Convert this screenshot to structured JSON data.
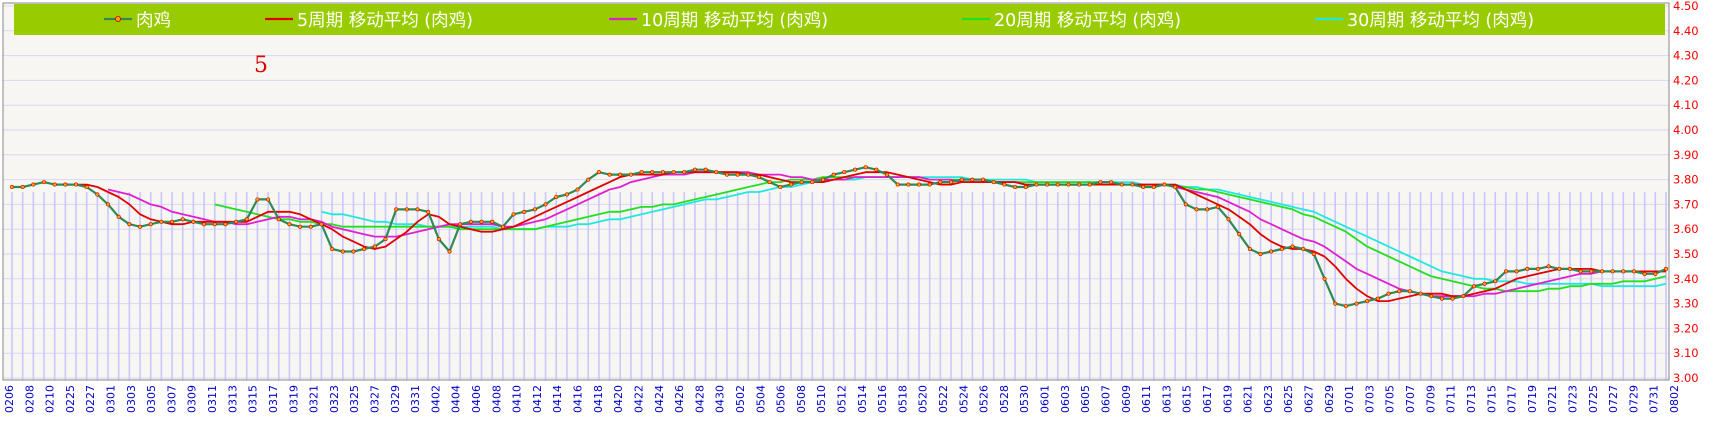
{
  "note_label": "5",
  "legend": [
    {
      "label": "肉鸡",
      "color": "#2e8b57",
      "marker": true
    },
    {
      "label": "5周期  移动平均 (肉鸡)",
      "color": "#e00000"
    },
    {
      "label": "10周期  移动平均 (肉鸡)",
      "color": "#e020d0"
    },
    {
      "label": "20周期  移动平均 (肉鸡)",
      "color": "#20e020"
    },
    {
      "label": "30周期  移动平均 (肉鸡)",
      "color": "#20e8e0"
    }
  ],
  "colors": {
    "legend_bar": "#99cc00",
    "legend_text": "#ffffff",
    "axis_label": "#ff0000",
    "x_label": "#0000cc",
    "bars": "#c8c8ff",
    "grid": "#d8d8f0",
    "price_line": "#2e8b57",
    "marker_fill": "#ffa500",
    "marker_stroke": "#cc0000"
  },
  "chart_data": {
    "type": "line",
    "ylim": [
      3.0,
      4.5
    ],
    "yticks": [
      "3.00",
      "3.10",
      "3.20",
      "3.30",
      "3.40",
      "3.50",
      "3.60",
      "3.70",
      "3.80",
      "3.90",
      "4.00",
      "4.10",
      "4.20",
      "4.30",
      "4.40",
      "4.50"
    ],
    "x_tick_labels": [
      "0206",
      "0208",
      "0210",
      "0225",
      "0227",
      "0301",
      "0303",
      "0305",
      "0307",
      "0309",
      "0311",
      "0313",
      "0315",
      "0317",
      "0319",
      "0321",
      "0323",
      "0325",
      "0327",
      "0329",
      "0331",
      "0402",
      "0404",
      "0406",
      "0408",
      "0410",
      "0412",
      "0414",
      "0416",
      "0418",
      "0420",
      "0422",
      "0424",
      "0426",
      "0428",
      "0430",
      "0502",
      "0504",
      "0506",
      "0508",
      "0510",
      "0512",
      "0514",
      "0516",
      "0518",
      "0520",
      "0522",
      "0524",
      "0526",
      "0528",
      "0530",
      "0601",
      "0603",
      "0605",
      "0607",
      "0609",
      "0611",
      "0613",
      "0615",
      "0617",
      "0619",
      "0621",
      "0623",
      "0625",
      "0627",
      "0629",
      "0701",
      "0703",
      "0705",
      "0707",
      "0709",
      "0711",
      "0713",
      "0715",
      "0717",
      "0719",
      "0721",
      "0723",
      "0725",
      "0727",
      "0729",
      "0731",
      "0802"
    ],
    "series": [
      {
        "name": "肉鸡",
        "values": [
          3.77,
          3.77,
          3.78,
          3.79,
          3.78,
          3.78,
          3.78,
          3.77,
          3.74,
          3.7,
          3.65,
          3.62,
          3.61,
          3.62,
          3.63,
          3.63,
          3.64,
          3.63,
          3.62,
          3.62,
          3.62,
          3.63,
          3.64,
          3.72,
          3.72,
          3.64,
          3.62,
          3.61,
          3.61,
          3.62,
          3.52,
          3.51,
          3.51,
          3.52,
          3.53,
          3.56,
          3.68,
          3.68,
          3.68,
          3.67,
          3.56,
          3.51,
          3.62,
          3.63,
          3.63,
          3.63,
          3.61,
          3.66,
          3.67,
          3.68,
          3.7,
          3.73,
          3.74,
          3.76,
          3.8,
          3.83,
          3.82,
          3.82,
          3.82,
          3.83,
          3.83,
          3.83,
          3.83,
          3.83,
          3.84,
          3.84,
          3.83,
          3.82,
          3.82,
          3.82,
          3.81,
          3.79,
          3.77,
          3.78,
          3.79,
          3.79,
          3.8,
          3.82,
          3.83,
          3.84,
          3.85,
          3.84,
          3.82,
          3.78,
          3.78,
          3.78,
          3.78,
          3.79,
          3.79,
          3.8,
          3.8,
          3.8,
          3.79,
          3.78,
          3.77,
          3.77,
          3.78,
          3.78,
          3.78,
          3.78,
          3.78,
          3.78,
          3.79,
          3.79,
          3.78,
          3.78,
          3.77,
          3.77,
          3.78,
          3.77,
          3.7,
          3.68,
          3.68,
          3.69,
          3.64,
          3.58,
          3.52,
          3.5,
          3.51,
          3.52,
          3.53,
          3.52,
          3.5,
          3.4,
          3.3,
          3.29,
          3.3,
          3.31,
          3.32,
          3.34,
          3.35,
          3.35,
          3.34,
          3.33,
          3.32,
          3.32,
          3.33,
          3.37,
          3.38,
          3.39,
          3.43,
          3.43,
          3.44,
          3.44,
          3.45,
          3.44,
          3.44,
          3.43,
          3.43,
          3.43,
          3.43,
          3.43,
          3.43,
          3.42,
          3.42,
          3.44
        ]
      },
      {
        "name": "5周期  移动平均 (肉鸡)",
        "values": [
          null,
          null,
          null,
          null,
          3.78,
          3.78,
          3.78,
          3.78,
          3.77,
          3.75,
          3.73,
          3.7,
          3.66,
          3.64,
          3.63,
          3.62,
          3.62,
          3.63,
          3.63,
          3.63,
          3.63,
          3.63,
          3.63,
          3.65,
          3.67,
          3.67,
          3.67,
          3.66,
          3.64,
          3.62,
          3.6,
          3.57,
          3.55,
          3.53,
          3.52,
          3.53,
          3.56,
          3.59,
          3.63,
          3.66,
          3.65,
          3.62,
          3.61,
          3.6,
          3.59,
          3.59,
          3.6,
          3.61,
          3.63,
          3.65,
          3.67,
          3.69,
          3.71,
          3.73,
          3.75,
          3.77,
          3.79,
          3.81,
          3.82,
          3.82,
          3.82,
          3.82,
          3.83,
          3.83,
          3.83,
          3.83,
          3.83,
          3.83,
          3.83,
          3.82,
          3.82,
          3.81,
          3.8,
          3.79,
          3.79,
          3.79,
          3.79,
          3.8,
          3.81,
          3.82,
          3.83,
          3.83,
          3.83,
          3.82,
          3.81,
          3.8,
          3.79,
          3.78,
          3.78,
          3.79,
          3.79,
          3.79,
          3.79,
          3.79,
          3.79,
          3.78,
          3.78,
          3.78,
          3.78,
          3.78,
          3.78,
          3.78,
          3.78,
          3.78,
          3.78,
          3.78,
          3.78,
          3.78,
          3.78,
          3.78,
          3.76,
          3.74,
          3.72,
          3.7,
          3.68,
          3.65,
          3.62,
          3.58,
          3.55,
          3.53,
          3.52,
          3.52,
          3.51,
          3.49,
          3.45,
          3.4,
          3.36,
          3.33,
          3.31,
          3.31,
          3.32,
          3.33,
          3.34,
          3.34,
          3.34,
          3.33,
          3.33,
          3.34,
          3.35,
          3.36,
          3.38,
          3.4,
          3.41,
          3.42,
          3.43,
          3.44,
          3.44,
          3.44,
          3.44,
          3.43,
          3.43,
          3.43,
          3.43,
          3.43,
          3.43,
          3.43
        ]
      },
      {
        "name": "10周期  移动平均 (肉鸡)",
        "values": [
          null,
          null,
          null,
          null,
          null,
          null,
          null,
          null,
          null,
          3.76,
          3.75,
          3.74,
          3.72,
          3.7,
          3.69,
          3.67,
          3.66,
          3.65,
          3.64,
          3.63,
          3.63,
          3.62,
          3.62,
          3.63,
          3.64,
          3.65,
          3.65,
          3.64,
          3.64,
          3.63,
          3.61,
          3.6,
          3.59,
          3.58,
          3.57,
          3.57,
          3.57,
          3.58,
          3.59,
          3.6,
          3.61,
          3.62,
          3.62,
          3.62,
          3.62,
          3.62,
          3.61,
          3.61,
          3.62,
          3.63,
          3.64,
          3.66,
          3.68,
          3.7,
          3.72,
          3.74,
          3.76,
          3.77,
          3.79,
          3.8,
          3.81,
          3.82,
          3.82,
          3.82,
          3.83,
          3.83,
          3.83,
          3.83,
          3.83,
          3.83,
          3.82,
          3.82,
          3.82,
          3.81,
          3.81,
          3.8,
          3.8,
          3.8,
          3.8,
          3.81,
          3.81,
          3.81,
          3.81,
          3.81,
          3.81,
          3.81,
          3.8,
          3.8,
          3.8,
          3.79,
          3.79,
          3.79,
          3.79,
          3.79,
          3.79,
          3.78,
          3.78,
          3.78,
          3.78,
          3.78,
          3.78,
          3.78,
          3.78,
          3.78,
          3.78,
          3.78,
          3.78,
          3.78,
          3.78,
          3.77,
          3.76,
          3.75,
          3.74,
          3.73,
          3.71,
          3.69,
          3.67,
          3.64,
          3.62,
          3.6,
          3.58,
          3.56,
          3.55,
          3.53,
          3.5,
          3.47,
          3.44,
          3.42,
          3.4,
          3.38,
          3.36,
          3.35,
          3.34,
          3.33,
          3.33,
          3.33,
          3.33,
          3.33,
          3.34,
          3.34,
          3.35,
          3.36,
          3.37,
          3.38,
          3.39,
          3.4,
          3.41,
          3.42,
          3.42,
          3.43,
          3.43,
          3.43,
          3.43,
          3.43,
          3.43,
          3.43
        ]
      },
      {
        "name": "20周期  移动平均 (肉鸡)",
        "values": [
          null,
          null,
          null,
          null,
          null,
          null,
          null,
          null,
          null,
          null,
          null,
          null,
          null,
          null,
          null,
          null,
          null,
          null,
          null,
          3.7,
          3.69,
          3.68,
          3.67,
          3.66,
          3.65,
          3.64,
          3.64,
          3.63,
          3.63,
          3.62,
          3.62,
          3.61,
          3.61,
          3.61,
          3.61,
          3.61,
          3.61,
          3.61,
          3.61,
          3.61,
          3.61,
          3.61,
          3.6,
          3.6,
          3.6,
          3.6,
          3.6,
          3.6,
          3.6,
          3.6,
          3.61,
          3.62,
          3.63,
          3.64,
          3.65,
          3.66,
          3.67,
          3.67,
          3.68,
          3.69,
          3.69,
          3.7,
          3.7,
          3.71,
          3.72,
          3.73,
          3.74,
          3.75,
          3.76,
          3.77,
          3.78,
          3.79,
          3.79,
          3.8,
          3.8,
          3.8,
          3.81,
          3.81,
          3.81,
          3.81,
          3.81,
          3.81,
          3.81,
          3.81,
          3.81,
          3.81,
          3.8,
          3.8,
          3.8,
          3.8,
          3.8,
          3.8,
          3.79,
          3.79,
          3.79,
          3.79,
          3.79,
          3.79,
          3.79,
          3.79,
          3.79,
          3.79,
          3.79,
          3.79,
          3.78,
          3.78,
          3.78,
          3.78,
          3.78,
          3.77,
          3.77,
          3.76,
          3.76,
          3.75,
          3.74,
          3.73,
          3.72,
          3.71,
          3.7,
          3.69,
          3.68,
          3.66,
          3.65,
          3.63,
          3.61,
          3.59,
          3.56,
          3.53,
          3.51,
          3.49,
          3.47,
          3.45,
          3.43,
          3.41,
          3.4,
          3.39,
          3.38,
          3.37,
          3.36,
          3.36,
          3.35,
          3.35,
          3.35,
          3.35,
          3.36,
          3.36,
          3.37,
          3.37,
          3.38,
          3.38,
          3.38,
          3.39,
          3.39,
          3.39,
          3.4,
          3.41
        ]
      },
      {
        "name": "30周期  移动平均 (肉鸡)",
        "values": [
          null,
          null,
          null,
          null,
          null,
          null,
          null,
          null,
          null,
          null,
          null,
          null,
          null,
          null,
          null,
          null,
          null,
          null,
          null,
          null,
          null,
          null,
          null,
          null,
          null,
          null,
          null,
          null,
          null,
          3.67,
          3.66,
          3.66,
          3.65,
          3.64,
          3.63,
          3.63,
          3.62,
          3.62,
          3.62,
          3.61,
          3.61,
          3.61,
          3.61,
          3.61,
          3.61,
          3.61,
          3.6,
          3.6,
          3.6,
          3.6,
          3.61,
          3.61,
          3.61,
          3.62,
          3.62,
          3.63,
          3.64,
          3.64,
          3.65,
          3.66,
          3.67,
          3.68,
          3.69,
          3.7,
          3.71,
          3.72,
          3.72,
          3.73,
          3.74,
          3.75,
          3.75,
          3.76,
          3.77,
          3.77,
          3.78,
          3.79,
          3.79,
          3.8,
          3.8,
          3.8,
          3.81,
          3.81,
          3.81,
          3.81,
          3.81,
          3.81,
          3.81,
          3.81,
          3.81,
          3.81,
          3.8,
          3.8,
          3.8,
          3.8,
          3.8,
          3.8,
          3.79,
          3.79,
          3.79,
          3.79,
          3.79,
          3.79,
          3.79,
          3.79,
          3.79,
          3.79,
          3.78,
          3.78,
          3.78,
          3.78,
          3.77,
          3.77,
          3.76,
          3.76,
          3.75,
          3.74,
          3.73,
          3.72,
          3.71,
          3.7,
          3.69,
          3.68,
          3.67,
          3.65,
          3.63,
          3.61,
          3.59,
          3.57,
          3.55,
          3.53,
          3.51,
          3.49,
          3.47,
          3.45,
          3.43,
          3.42,
          3.41,
          3.4,
          3.4,
          3.39,
          3.39,
          3.39,
          3.38,
          3.38,
          3.38,
          3.38,
          3.38,
          3.38,
          3.38,
          3.37,
          3.37,
          3.37,
          3.37,
          3.37,
          3.37,
          3.38
        ]
      }
    ]
  }
}
